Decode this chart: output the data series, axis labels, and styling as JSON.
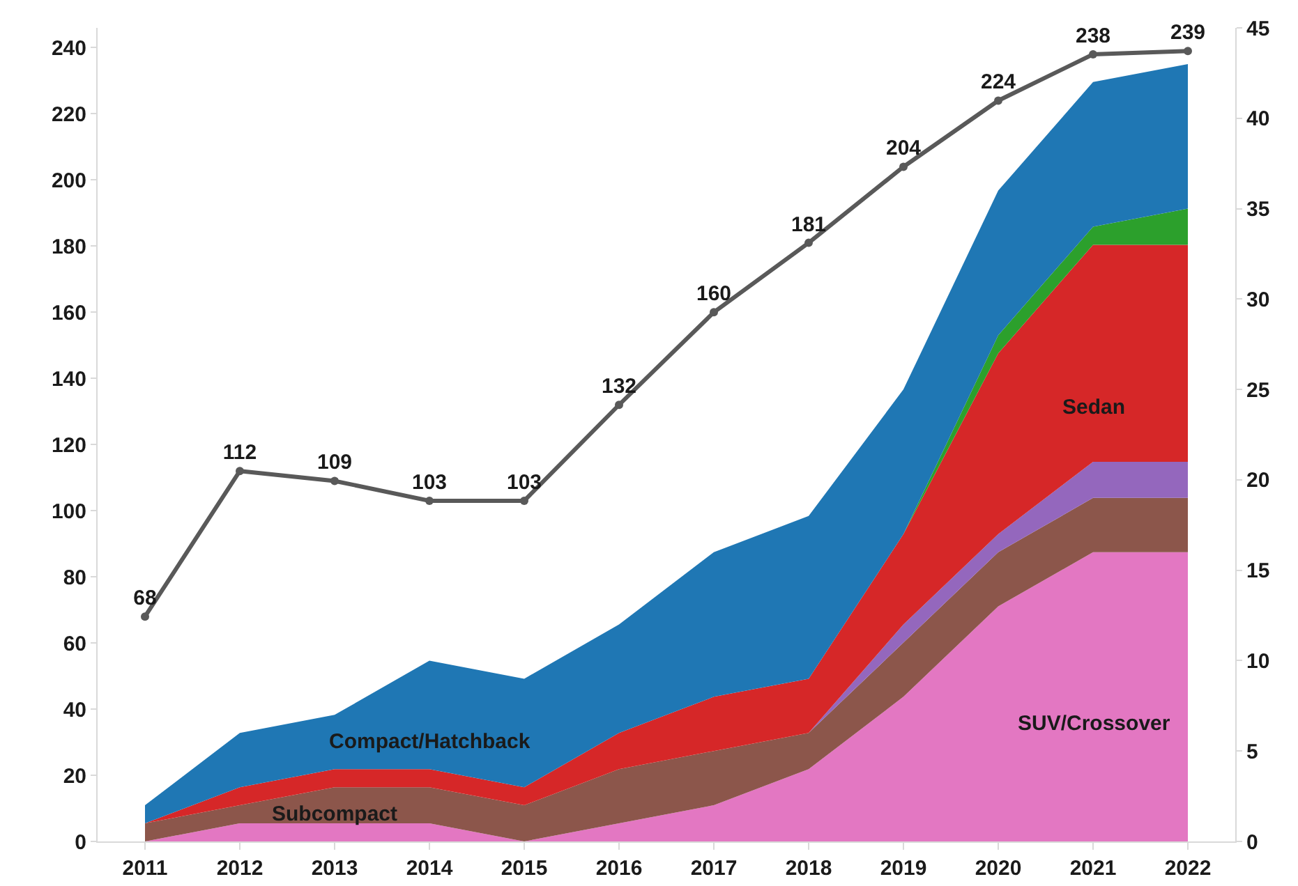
{
  "chart_data": {
    "type": "area",
    "stacked": true,
    "categories": [
      "2011",
      "2012",
      "2013",
      "2014",
      "2015",
      "2016",
      "2017",
      "2018",
      "2019",
      "2020",
      "2021",
      "2022"
    ],
    "series": [
      {
        "name": "SUV/Crossover",
        "color": "#e377c2",
        "axis": "y2",
        "values": [
          0,
          1,
          1,
          1,
          0,
          1,
          2,
          4,
          8,
          13,
          16,
          16
        ]
      },
      {
        "name": "Subcompact",
        "color": "#8c564b",
        "axis": "y2",
        "values": [
          1,
          1,
          2,
          2,
          2,
          3,
          3,
          2,
          3,
          3,
          3,
          3
        ]
      },
      {
        "color": "#9467bd",
        "axis": "y2",
        "values": [
          0,
          0,
          0,
          0,
          0,
          0,
          0,
          0,
          1,
          1,
          2,
          2
        ]
      },
      {
        "name": "Sedan",
        "color": "#d62728",
        "axis": "y2",
        "values": [
          0,
          1,
          1,
          1,
          1,
          2,
          3,
          3,
          5,
          10,
          12,
          12
        ]
      },
      {
        "color": "#2ca02c",
        "axis": "y2",
        "values": [
          0,
          0,
          0,
          0,
          0,
          0,
          0,
          0,
          0,
          1,
          1,
          2
        ]
      },
      {
        "name": "Compact/Hatchback",
        "color": "#1f77b4",
        "axis": "y2",
        "values": [
          1,
          3,
          3,
          6,
          6,
          6,
          8,
          9,
          8,
          8,
          8,
          8
        ]
      },
      {
        "type": "line",
        "color": "#595959",
        "axis": "y",
        "marker": "circle",
        "data_labels": true,
        "values": [
          68,
          112,
          109,
          103,
          103,
          132,
          160,
          181,
          204,
          224,
          238,
          239
        ]
      }
    ],
    "ylim": [
      0,
      246
    ],
    "yticks": [
      0,
      20,
      40,
      60,
      80,
      100,
      120,
      140,
      160,
      180,
      200,
      220,
      240
    ],
    "y2lim": [
      0,
      45
    ],
    "y2ticks": [
      0,
      5,
      10,
      15,
      20,
      25,
      30,
      35,
      40,
      45
    ],
    "grid": false,
    "legend": false
  }
}
